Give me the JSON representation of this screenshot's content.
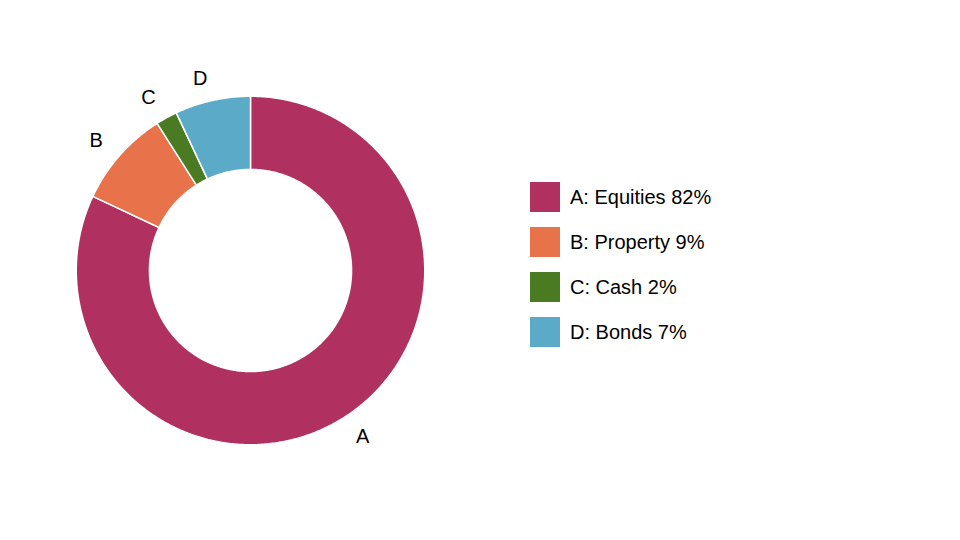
{
  "chart_data": {
    "type": "donut",
    "categories": [
      "A",
      "B",
      "C",
      "D"
    ],
    "values": [
      82,
      9,
      2,
      7
    ],
    "colors": [
      "#b03060",
      "#e8734a",
      "#4a7a22",
      "#5aaac8"
    ],
    "legend_labels": [
      "A: Equities 82%",
      "B: Property 9%",
      "C: Cash 2%",
      "D: Bonds 7%"
    ]
  }
}
